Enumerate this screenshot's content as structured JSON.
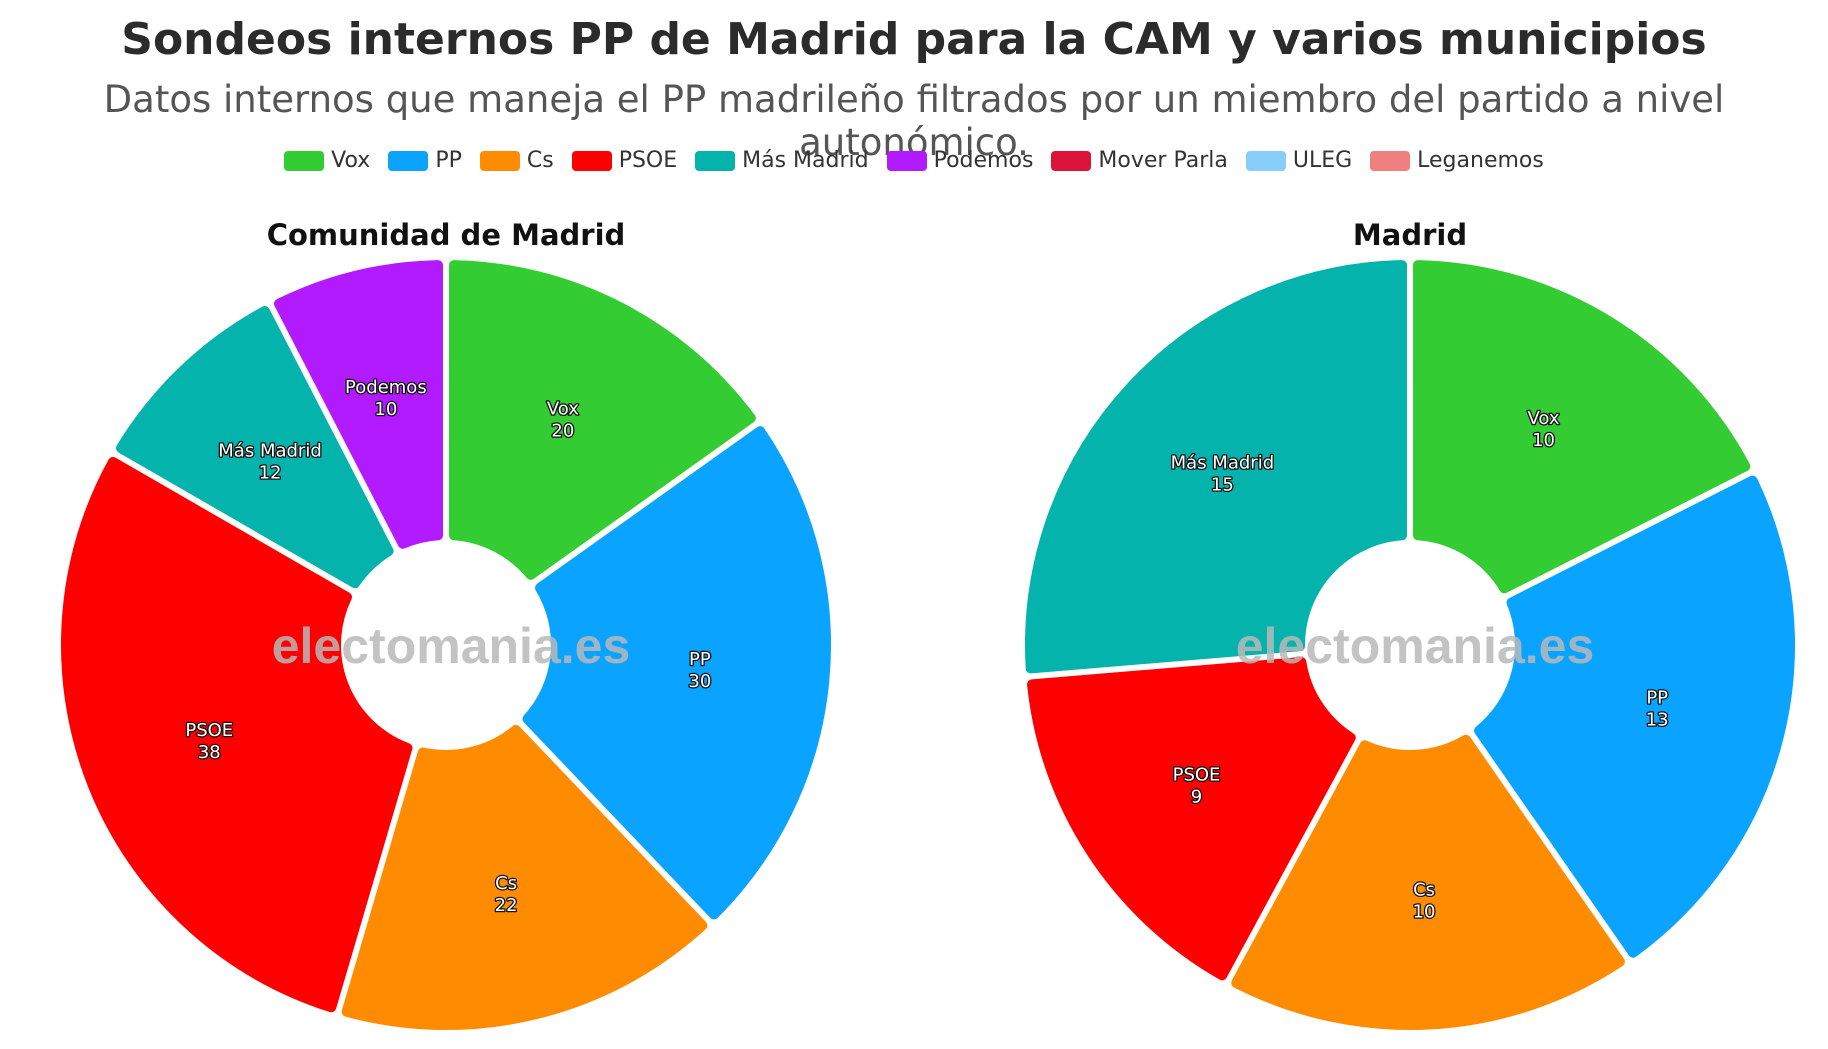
{
  "title": "Sondeos internos PP de Madrid para la CAM y varios municipios",
  "subtitle": "Datos internos que maneja el PP madrileño filtrados por un miembro del partido a nivel autonómico.",
  "watermark": "electomania.es",
  "legend": [
    {
      "name": "Vox",
      "color": "#33cc33"
    },
    {
      "name": "PP",
      "color": "#0aa3ff"
    },
    {
      "name": "Cs",
      "color": "#ff8c00"
    },
    {
      "name": "PSOE",
      "color": "#ff0000"
    },
    {
      "name": "Más Madrid",
      "color": "#05b3ad"
    },
    {
      "name": "Podemos",
      "color": "#b21aff"
    },
    {
      "name": "Mover Parla",
      "color": "#dc143c"
    },
    {
      "name": "ULEG",
      "color": "#87cefa"
    },
    {
      "name": "Leganemos",
      "color": "#f08080"
    }
  ],
  "chart_data": [
    {
      "type": "pie",
      "title": "Comunidad de Madrid",
      "categories": [
        "Vox",
        "PP",
        "Cs",
        "PSOE",
        "Más Madrid",
        "Podemos"
      ],
      "values": [
        20,
        30,
        22,
        38,
        12,
        10
      ],
      "colors": [
        "#33cc33",
        "#0aa3ff",
        "#ff8c00",
        "#ff0000",
        "#05b3ad",
        "#b21aff"
      ],
      "donut": true
    },
    {
      "type": "pie",
      "title": "Madrid",
      "categories": [
        "Vox",
        "PP",
        "Cs",
        "PSOE",
        "Más Madrid"
      ],
      "values": [
        10,
        13,
        10,
        9,
        15
      ],
      "colors": [
        "#33cc33",
        "#0aa3ff",
        "#ff8c00",
        "#ff0000",
        "#05b3ad"
      ],
      "donut": true
    }
  ]
}
